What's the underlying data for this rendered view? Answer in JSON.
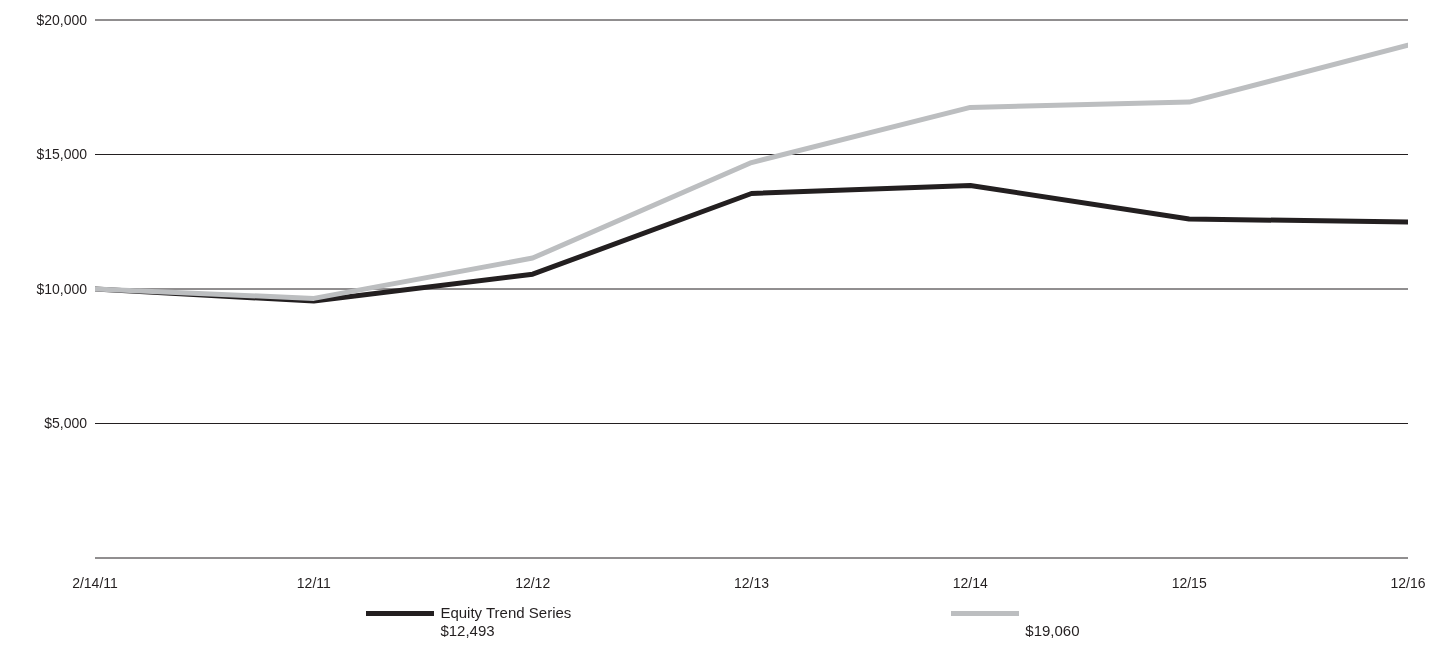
{
  "chart_data": {
    "type": "line",
    "categories": [
      "2/14/11",
      "12/11",
      "12/12",
      "12/13",
      "12/14",
      "12/15",
      "12/16"
    ],
    "series": [
      {
        "name": "Equity Trend Series",
        "color": "#231f20",
        "values": [
          10000,
          9550,
          10550,
          13550,
          13850,
          12600,
          12493
        ]
      },
      {
        "color": "#bcbec0",
        "values": [
          10000,
          9650,
          11150,
          14700,
          16750,
          16950,
          19060
        ]
      }
    ],
    "ylim": [
      0,
      20000
    ],
    "yticks": [
      {
        "value": 5000,
        "label": "$5,000"
      },
      {
        "value": 10000,
        "label": "$10,000"
      },
      {
        "value": 15000,
        "label": "$15,000"
      },
      {
        "value": 20000,
        "label": "$20,000"
      }
    ],
    "grid": "y",
    "legend": "bottom",
    "marker": "none",
    "line_style": "solid",
    "annotations": [
      "$12,493",
      "$19,060"
    ]
  }
}
